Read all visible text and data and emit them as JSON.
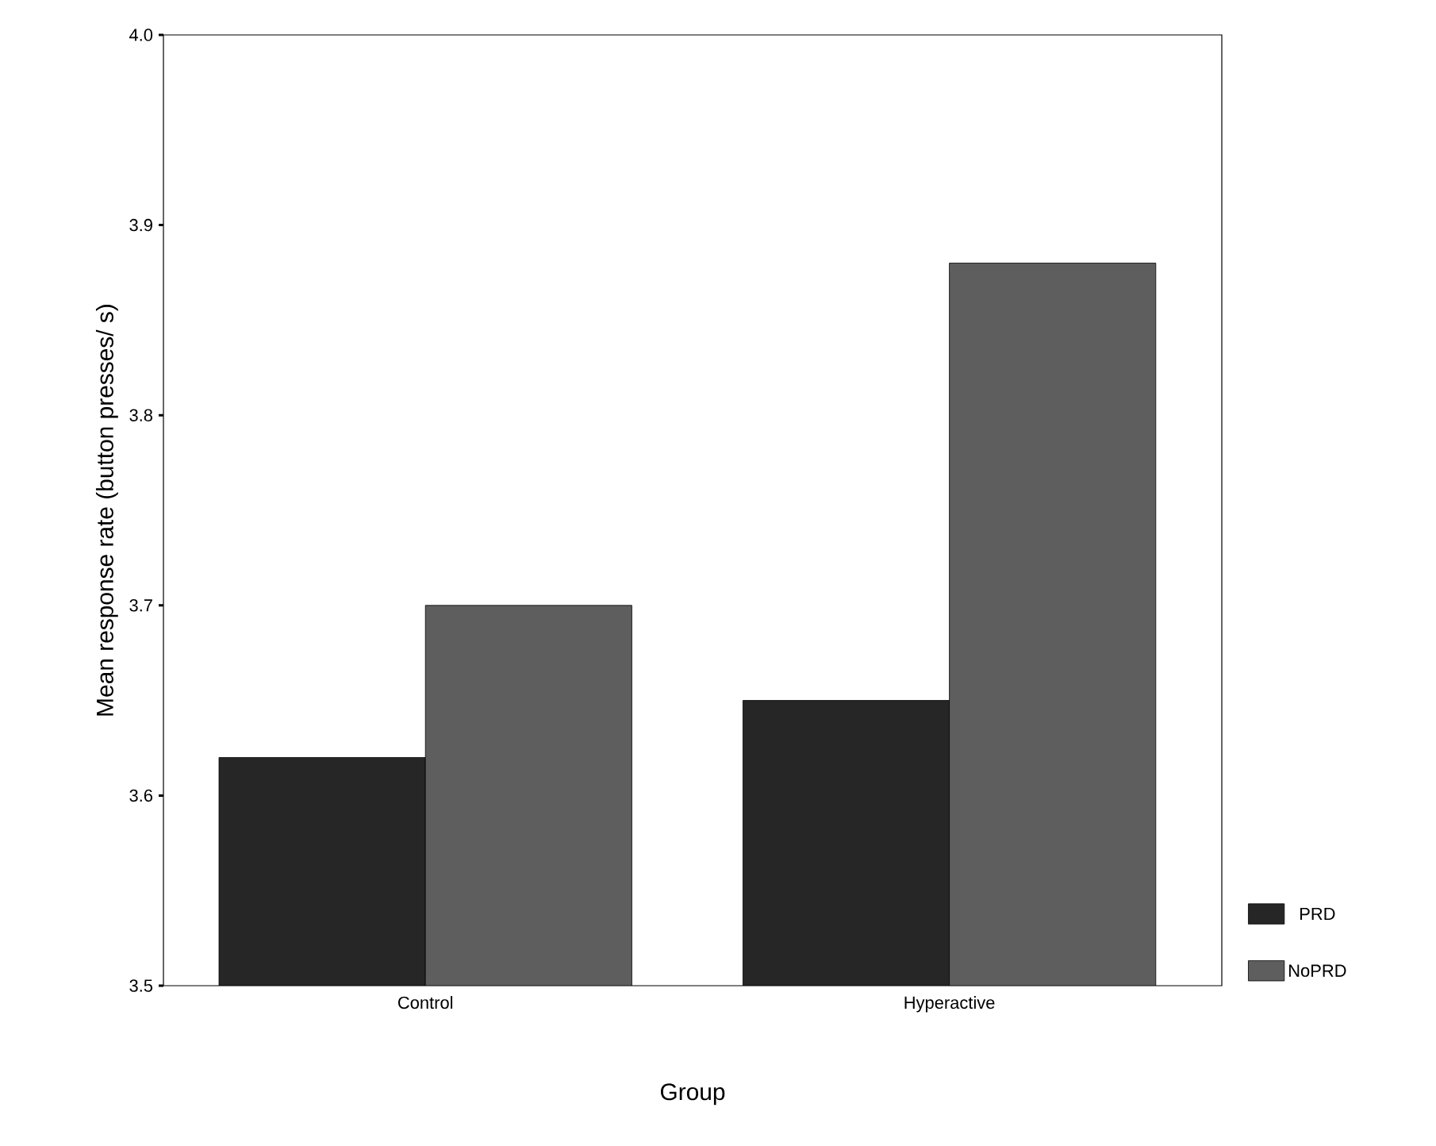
{
  "chart_data": {
    "type": "bar",
    "xlabel": "Group",
    "ylabel": "Mean response rate (button presses/ s)",
    "categories": [
      "Control",
      "Hyperactive"
    ],
    "series": [
      {
        "name": "PRD",
        "color": "#262626",
        "values": [
          3.62,
          3.65
        ]
      },
      {
        "name": "NoPRD",
        "color": "#5e5e5e",
        "values": [
          3.7,
          3.88
        ]
      }
    ],
    "ylim": [
      3.5,
      4.0
    ],
    "yticks": [
      3.5,
      3.6,
      3.7,
      3.8,
      3.9,
      {
        "value": 4,
        "label": "4.0"
      }
    ],
    "grid": false,
    "legend": "bottom right"
  }
}
